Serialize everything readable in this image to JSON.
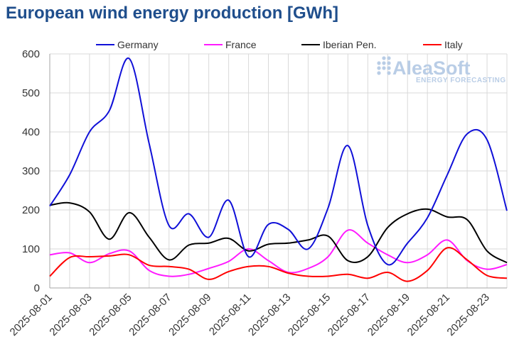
{
  "title": "European wind energy production [GWh]",
  "watermark": {
    "brand": "AleaSoft",
    "tagline": "ENERGY FORECASTING"
  },
  "chart_data": {
    "type": "line",
    "title": "European wind energy production [GWh]",
    "ylim": [
      0,
      600
    ],
    "yticks": [
      0,
      100,
      200,
      300,
      400,
      500,
      600
    ],
    "x": [
      "2025-08-01",
      "2025-08-02",
      "2025-08-03",
      "2025-08-04",
      "2025-08-05",
      "2025-08-06",
      "2025-08-07",
      "2025-08-08",
      "2025-08-09",
      "2025-08-10",
      "2025-08-11",
      "2025-08-12",
      "2025-08-13",
      "2025-08-14",
      "2025-08-15",
      "2025-08-16",
      "2025-08-17",
      "2025-08-18",
      "2025-08-19",
      "2025-08-20",
      "2025-08-21",
      "2025-08-22",
      "2025-08-23",
      "2025-08-24"
    ],
    "xtick_labels": [
      "2025-08-01",
      "2025-08-03",
      "2025-08-05",
      "2025-08-07",
      "2025-08-09",
      "2025-08-11",
      "2025-08-13",
      "2025-08-15",
      "2025-08-17",
      "2025-08-19",
      "2025-08-21",
      "2025-08-23"
    ],
    "grid": true,
    "legend_position": "top",
    "series": [
      {
        "name": "Germany",
        "color": "#1010d8",
        "values": [
          210,
          290,
          400,
          455,
          588,
          370,
          160,
          190,
          130,
          225,
          80,
          163,
          150,
          100,
          205,
          365,
          160,
          60,
          115,
          180,
          290,
          395,
          380,
          198
        ]
      },
      {
        "name": "France",
        "color": "#ff1aff",
        "values": [
          85,
          90,
          65,
          88,
          95,
          45,
          30,
          35,
          50,
          68,
          100,
          70,
          40,
          50,
          80,
          148,
          115,
          85,
          65,
          85,
          123,
          70,
          48,
          60
        ]
      },
      {
        "name": "Iberian Pen.",
        "color": "#000000",
        "values": [
          212,
          218,
          195,
          125,
          193,
          130,
          72,
          110,
          115,
          127,
          95,
          112,
          115,
          123,
          133,
          70,
          80,
          155,
          190,
          202,
          182,
          175,
          95,
          65
        ]
      },
      {
        "name": "Italy",
        "color": "#ff0000",
        "values": [
          30,
          78,
          80,
          82,
          85,
          58,
          55,
          48,
          22,
          42,
          55,
          55,
          38,
          30,
          30,
          35,
          25,
          40,
          17,
          45,
          103,
          72,
          32,
          25
        ]
      }
    ]
  }
}
